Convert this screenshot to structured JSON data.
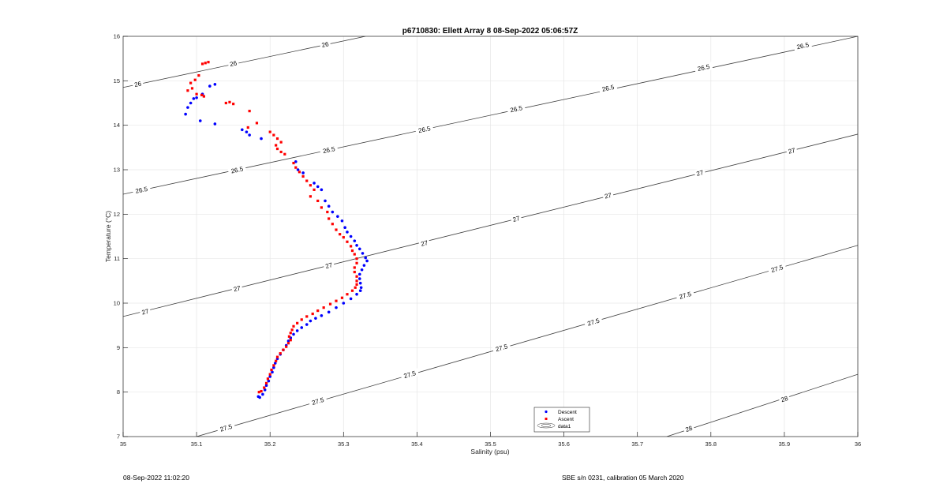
{
  "chart_data": {
    "type": "scatter",
    "title": "p6710830: Ellett Array 8 08-Sep-2022 05:06:57Z",
    "xlabel": "Salinity (psu)",
    "ylabel": "Temperature (°C)",
    "xlim": [
      35,
      36
    ],
    "ylim": [
      7,
      16
    ],
    "grid": true,
    "x_ticks": [
      35,
      35.1,
      35.2,
      35.3,
      35.4,
      35.5,
      35.6,
      35.7,
      35.8,
      35.9,
      36
    ],
    "y_ticks": [
      7,
      8,
      9,
      10,
      11,
      12,
      13,
      14,
      15,
      16
    ],
    "legend": {
      "placement": "bottom-center",
      "entries": [
        "Descent",
        "Ascent",
        "data1"
      ]
    },
    "contours": [
      {
        "level": 26,
        "label": "26",
        "x": [
          35,
          35.33
        ],
        "y": [
          14.85,
          16.0
        ],
        "labels": [
          [
            35.02,
            14.93
          ],
          [
            35.15,
            15.39
          ],
          [
            35.275,
            15.82
          ]
        ]
      },
      {
        "level": 26.5,
        "label": "26.5",
        "x": [
          35,
          36
        ],
        "y": [
          12.45,
          16.0
        ],
        "labels": [
          [
            35.025,
            12.55
          ],
          [
            35.155,
            13.0
          ],
          [
            35.28,
            13.45
          ],
          [
            35.41,
            13.91
          ],
          [
            35.535,
            14.37
          ],
          [
            35.66,
            14.84
          ],
          [
            35.79,
            15.3
          ],
          [
            35.925,
            15.79
          ]
        ]
      },
      {
        "level": 27,
        "label": "27",
        "x": [
          35,
          36
        ],
        "y": [
          9.7,
          13.8
        ],
        "labels": [
          [
            35.03,
            9.81
          ],
          [
            35.155,
            10.33
          ],
          [
            35.28,
            10.85
          ],
          [
            35.41,
            11.35
          ],
          [
            35.535,
            11.9
          ],
          [
            35.66,
            12.42
          ],
          [
            35.785,
            12.93
          ],
          [
            35.91,
            13.43
          ]
        ]
      },
      {
        "level": 27.5,
        "label": "27.5",
        "x": [
          35.1,
          36
        ],
        "y": [
          7.0,
          11.3
        ],
        "labels": [
          [
            35.14,
            7.2
          ],
          [
            35.265,
            7.8
          ],
          [
            35.39,
            8.4
          ],
          [
            35.515,
            9.0
          ],
          [
            35.64,
            9.58
          ],
          [
            35.765,
            10.18
          ],
          [
            35.89,
            10.78
          ]
        ]
      },
      {
        "level": 28,
        "label": "28",
        "x": [
          35.74,
          36
        ],
        "y": [
          7.0,
          8.4
        ],
        "labels": [
          [
            35.77,
            7.18
          ],
          [
            35.9,
            7.85
          ]
        ]
      }
    ],
    "series": [
      {
        "name": "Descent",
        "color": "#0000ff",
        "points": [
          [
            35.085,
            14.25
          ],
          [
            35.088,
            14.4
          ],
          [
            35.092,
            14.5
          ],
          [
            35.096,
            14.6
          ],
          [
            35.1,
            14.62
          ],
          [
            35.108,
            14.7
          ],
          [
            35.118,
            14.88
          ],
          [
            35.125,
            14.92
          ],
          [
            35.105,
            14.1
          ],
          [
            35.125,
            14.03
          ],
          [
            35.162,
            13.9
          ],
          [
            35.168,
            13.85
          ],
          [
            35.172,
            13.78
          ],
          [
            35.188,
            13.7
          ],
          [
            35.235,
            13.18
          ],
          [
            35.238,
            13.0
          ],
          [
            35.245,
            12.93
          ],
          [
            35.26,
            12.7
          ],
          [
            35.265,
            12.62
          ],
          [
            35.27,
            12.55
          ],
          [
            35.275,
            12.3
          ],
          [
            35.28,
            12.18
          ],
          [
            35.285,
            12.05
          ],
          [
            35.292,
            11.95
          ],
          [
            35.298,
            11.85
          ],
          [
            35.302,
            11.7
          ],
          [
            35.305,
            11.6
          ],
          [
            35.31,
            11.5
          ],
          [
            35.315,
            11.4
          ],
          [
            35.318,
            11.3
          ],
          [
            35.322,
            11.22
          ],
          [
            35.326,
            11.12
          ],
          [
            35.33,
            11.02
          ],
          [
            35.332,
            10.95
          ],
          [
            35.328,
            10.85
          ],
          [
            35.325,
            10.75
          ],
          [
            35.322,
            10.65
          ],
          [
            35.322,
            10.55
          ],
          [
            35.323,
            10.45
          ],
          [
            35.324,
            10.35
          ],
          [
            35.323,
            10.28
          ],
          [
            35.318,
            10.2
          ],
          [
            35.31,
            10.1
          ],
          [
            35.3,
            10.0
          ],
          [
            35.29,
            9.9
          ],
          [
            35.28,
            9.8
          ],
          [
            35.27,
            9.72
          ],
          [
            35.262,
            9.66
          ],
          [
            35.255,
            9.6
          ],
          [
            35.25,
            9.52
          ],
          [
            35.243,
            9.45
          ],
          [
            35.237,
            9.38
          ],
          [
            35.232,
            9.3
          ],
          [
            35.228,
            9.22
          ],
          [
            35.225,
            9.15
          ],
          [
            35.222,
            9.05
          ],
          [
            35.218,
            8.95
          ],
          [
            35.214,
            8.85
          ],
          [
            35.21,
            8.75
          ],
          [
            35.207,
            8.65
          ],
          [
            35.205,
            8.55
          ],
          [
            35.203,
            8.45
          ],
          [
            35.2,
            8.35
          ],
          [
            35.198,
            8.25
          ],
          [
            35.195,
            8.15
          ],
          [
            35.193,
            8.05
          ],
          [
            35.19,
            7.95
          ],
          [
            35.186,
            7.88
          ],
          [
            35.184,
            7.9
          ]
        ]
      },
      {
        "name": "Ascent",
        "color": "#ff0000",
        "points": [
          [
            35.108,
            15.38
          ],
          [
            35.112,
            15.4
          ],
          [
            35.116,
            15.42
          ],
          [
            35.103,
            15.12
          ],
          [
            35.098,
            15.02
          ],
          [
            35.092,
            14.95
          ],
          [
            35.094,
            14.83
          ],
          [
            35.088,
            14.78
          ],
          [
            35.1,
            14.7
          ],
          [
            35.107,
            14.68
          ],
          [
            35.11,
            14.65
          ],
          [
            35.14,
            14.5
          ],
          [
            35.145,
            14.52
          ],
          [
            35.15,
            14.48
          ],
          [
            35.172,
            14.32
          ],
          [
            35.17,
            13.95
          ],
          [
            35.182,
            14.05
          ],
          [
            35.2,
            13.85
          ],
          [
            35.205,
            13.78
          ],
          [
            35.21,
            13.7
          ],
          [
            35.215,
            13.62
          ],
          [
            35.208,
            13.55
          ],
          [
            35.21,
            13.47
          ],
          [
            35.215,
            13.4
          ],
          [
            35.22,
            13.35
          ],
          [
            35.232,
            13.15
          ],
          [
            35.235,
            13.05
          ],
          [
            35.24,
            12.95
          ],
          [
            35.245,
            12.85
          ],
          [
            35.25,
            12.75
          ],
          [
            35.255,
            12.65
          ],
          [
            35.26,
            12.55
          ],
          [
            35.255,
            12.4
          ],
          [
            35.265,
            12.3
          ],
          [
            35.27,
            12.15
          ],
          [
            35.278,
            12.05
          ],
          [
            35.28,
            11.9
          ],
          [
            35.285,
            11.78
          ],
          [
            35.29,
            11.65
          ],
          [
            35.295,
            11.55
          ],
          [
            35.3,
            11.48
          ],
          [
            35.305,
            11.38
          ],
          [
            35.31,
            11.28
          ],
          [
            35.312,
            11.18
          ],
          [
            35.315,
            11.1
          ],
          [
            35.318,
            11.0
          ],
          [
            35.318,
            10.9
          ],
          [
            35.315,
            10.8
          ],
          [
            35.315,
            10.7
          ],
          [
            35.318,
            10.6
          ],
          [
            35.318,
            10.5
          ],
          [
            35.318,
            10.42
          ],
          [
            35.316,
            10.35
          ],
          [
            35.312,
            10.28
          ],
          [
            35.305,
            10.2
          ],
          [
            35.298,
            10.12
          ],
          [
            35.29,
            10.05
          ],
          [
            35.282,
            9.98
          ],
          [
            35.273,
            9.9
          ],
          [
            35.265,
            9.83
          ],
          [
            35.258,
            9.76
          ],
          [
            35.25,
            9.7
          ],
          [
            35.243,
            9.63
          ],
          [
            35.237,
            9.55
          ],
          [
            35.232,
            9.48
          ],
          [
            35.23,
            9.4
          ],
          [
            35.228,
            9.33
          ],
          [
            35.226,
            9.25
          ],
          [
            35.228,
            9.17
          ],
          [
            35.225,
            9.1
          ],
          [
            35.222,
            9.02
          ],
          [
            35.218,
            8.95
          ],
          [
            35.214,
            8.87
          ],
          [
            35.21,
            8.79
          ],
          [
            35.208,
            8.7
          ],
          [
            35.205,
            8.6
          ],
          [
            35.202,
            8.5
          ],
          [
            35.2,
            8.4
          ],
          [
            35.197,
            8.3
          ],
          [
            35.195,
            8.2
          ],
          [
            35.192,
            8.1
          ],
          [
            35.188,
            8.02
          ],
          [
            35.185,
            8.0
          ]
        ]
      }
    ]
  },
  "footer": {
    "timestamp": "08-Sep-2022 11:02:20",
    "calibration": "SBE s/n 0231, calibration 05 March 2020"
  }
}
